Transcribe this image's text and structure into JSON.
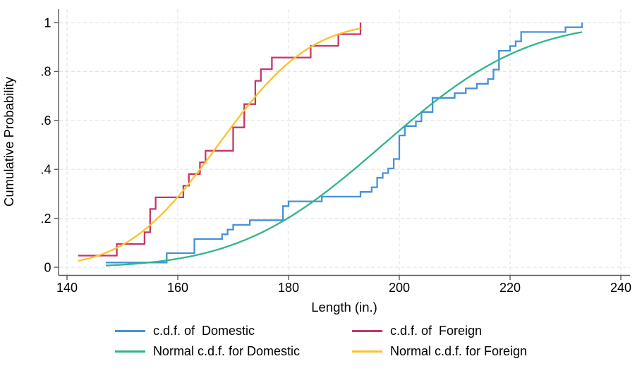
{
  "labels": {
    "y_axis": "Cumulative Probability",
    "x_axis": "Length (in.)"
  },
  "chart_data": {
    "type": "line",
    "title": "",
    "xlabel": "Length (in.)",
    "ylabel": "Cumulative Probability",
    "xlim": [
      138,
      242
    ],
    "ylim": [
      0,
      1
    ],
    "grid": true,
    "legend_position": "bottom",
    "x_axis": {
      "ticks": [
        140,
        160,
        180,
        200,
        220,
        240
      ],
      "tick_labels": [
        "140",
        "160",
        "180",
        "200",
        "220",
        "240"
      ]
    },
    "y_axis": {
      "ticks": [
        0,
        0.2,
        0.4,
        0.6,
        0.8,
        1
      ],
      "tick_labels": [
        "0",
        ".2",
        ".4",
        ".6",
        ".8",
        "1"
      ]
    },
    "series": [
      {
        "name": "c.d.f. of  Domestic",
        "kind": "step",
        "color": "#4691db",
        "sample_size": 52,
        "points": [
          [
            147,
            0.0192
          ],
          [
            158,
            0.0577
          ],
          [
            163,
            0.1154
          ],
          [
            168,
            0.1346
          ],
          [
            169,
            0.1538
          ],
          [
            170,
            0.1731
          ],
          [
            173,
            0.1923
          ],
          [
            179,
            0.25
          ],
          [
            180,
            0.2692
          ],
          [
            186,
            0.2885
          ],
          [
            193,
            0.3077
          ],
          [
            195,
            0.3269
          ],
          [
            196,
            0.3654
          ],
          [
            197,
            0.3846
          ],
          [
            198,
            0.4038
          ],
          [
            199,
            0.4423
          ],
          [
            200,
            0.5385
          ],
          [
            201,
            0.5769
          ],
          [
            203,
            0.5962
          ],
          [
            204,
            0.6346
          ],
          [
            206,
            0.6923
          ],
          [
            210,
            0.7115
          ],
          [
            212,
            0.7308
          ],
          [
            214,
            0.75
          ],
          [
            216,
            0.7692
          ],
          [
            217,
            0.8077
          ],
          [
            218,
            0.8846
          ],
          [
            220,
            0.9038
          ],
          [
            221,
            0.9231
          ],
          [
            222,
            0.9615
          ],
          [
            230,
            0.9808
          ],
          [
            233,
            1.0
          ]
        ]
      },
      {
        "name": "c.d.f. of  Foreign",
        "kind": "step",
        "color": "#c63668",
        "sample_size": 21,
        "points": [
          [
            142,
            0.0476
          ],
          [
            149,
            0.0952
          ],
          [
            154,
            0.1429
          ],
          [
            155,
            0.2381
          ],
          [
            156,
            0.2857
          ],
          [
            161,
            0.3333
          ],
          [
            162,
            0.381
          ],
          [
            164,
            0.4286
          ],
          [
            165,
            0.4762
          ],
          [
            170,
            0.5714
          ],
          [
            172,
            0.6667
          ],
          [
            174,
            0.7619
          ],
          [
            175,
            0.8095
          ],
          [
            177,
            0.8571
          ],
          [
            184,
            0.9048
          ],
          [
            189,
            0.9524
          ],
          [
            193,
            1.0
          ]
        ]
      },
      {
        "name": "Normal c.d.f. for Domestic",
        "kind": "normal",
        "color": "#2fb58a",
        "mean": 197.0,
        "sd": 20.4,
        "x_range": [
          147,
          233
        ]
      },
      {
        "name": "Normal c.d.f. for Foreign",
        "kind": "normal",
        "color": "#fdc028",
        "mean": 167.3,
        "sd": 13.0,
        "x_range": [
          142,
          193
        ]
      }
    ]
  },
  "legend": {
    "items": [
      {
        "label": "c.d.f. of  Domestic",
        "series": 0
      },
      {
        "label": "c.d.f. of  Foreign",
        "series": 1
      },
      {
        "label": "Normal c.d.f. for Domestic",
        "series": 2
      },
      {
        "label": "Normal c.d.f. for Foreign",
        "series": 3
      }
    ]
  }
}
